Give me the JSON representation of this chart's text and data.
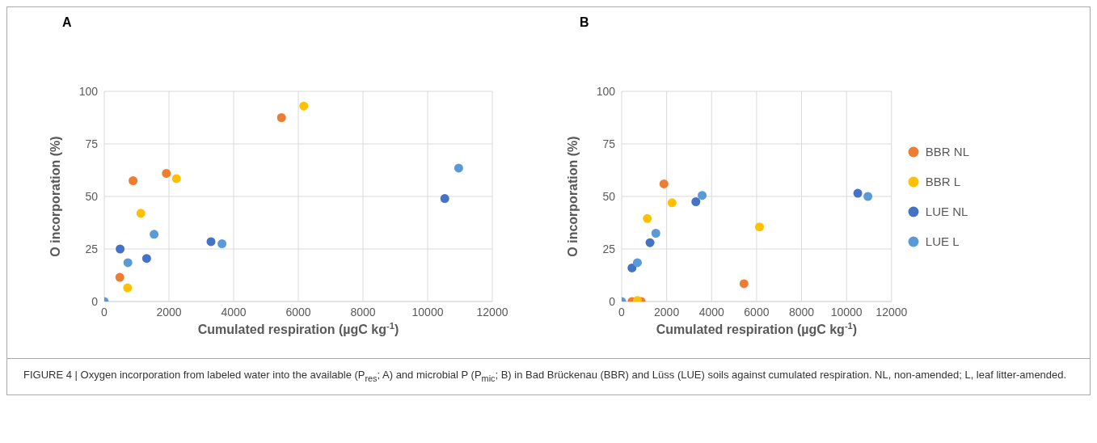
{
  "chart_data": [
    {
      "type": "scatter",
      "title": "A",
      "xlabel": "Cumulated respiration (µgC kg$^{-1}$)",
      "ylabel": "O incorporation (%)",
      "xlim": [
        0,
        12000
      ],
      "xticks": [
        0,
        2000,
        4000,
        6000,
        8000,
        10000,
        12000
      ],
      "ylim": [
        0,
        100
      ],
      "yticks": [
        0,
        25,
        50,
        75,
        100
      ],
      "grid": true,
      "marker": "circle",
      "annotations": [
        "FIGURE 4 | Oxygen incorporation from labeled water into the available (P$_{res}$; A) and microbial P (P$_{mic}$; B) in Bad Brückenau (BBR) and Lüss (LUE) soils against cumulated respiration. NL, non-amended; L, leaf litter-amended."
      ],
      "series": [
        {
          "color": "#ed7d31",
          "x": [
            480,
            890,
            1920,
            5480
          ],
          "values": [
            11.5,
            57.5,
            61,
            87.5
          ]
        },
        {
          "color": "#ffc000",
          "x": [
            720,
            1130,
            2230,
            6170
          ],
          "values": [
            6.5,
            42,
            58.5,
            93
          ]
        },
        {
          "color": "#4472c4",
          "x": [
            490,
            1310,
            3300,
            10530
          ],
          "values": [
            25,
            20.5,
            28.5,
            49
          ]
        },
        {
          "color": "#5b9bd5",
          "x": [
            0,
            730,
            1540,
            3640,
            10960
          ],
          "values": [
            0,
            18.5,
            32,
            27.5,
            63.5
          ]
        }
      ]
    },
    {
      "type": "scatter",
      "title": "B",
      "xlabel": "Cumulated respiration (µgC kg$^{-1}$)",
      "ylabel": "O incorporation (%)",
      "xlim": [
        0,
        12000
      ],
      "xticks": [
        0,
        2000,
        4000,
        6000,
        8000,
        10000,
        12000
      ],
      "ylim": [
        0,
        100
      ],
      "yticks": [
        0,
        25,
        50,
        75,
        100
      ],
      "grid": true,
      "marker": "circle",
      "legend": "right",
      "series": [
        {
          "name": "BBR NL",
          "color": "#ed7d31",
          "x": [
            460,
            870,
            1880,
            5440
          ],
          "values": [
            0,
            0,
            56,
            8.5
          ]
        },
        {
          "name": "BBR L",
          "color": "#ffc000",
          "x": [
            700,
            1140,
            2240,
            6130
          ],
          "values": [
            0.5,
            39.5,
            47,
            35.5
          ]
        },
        {
          "name": "LUE NL",
          "color": "#4472c4",
          "x": [
            460,
            1260,
            3300,
            10500
          ],
          "values": [
            16,
            28,
            47.5,
            51.5
          ]
        },
        {
          "name": "LUE L",
          "color": "#5b9bd5",
          "x": [
            0,
            700,
            1520,
            3580,
            10950
          ],
          "values": [
            0,
            18.5,
            32.5,
            50.5,
            50
          ]
        }
      ]
    }
  ]
}
